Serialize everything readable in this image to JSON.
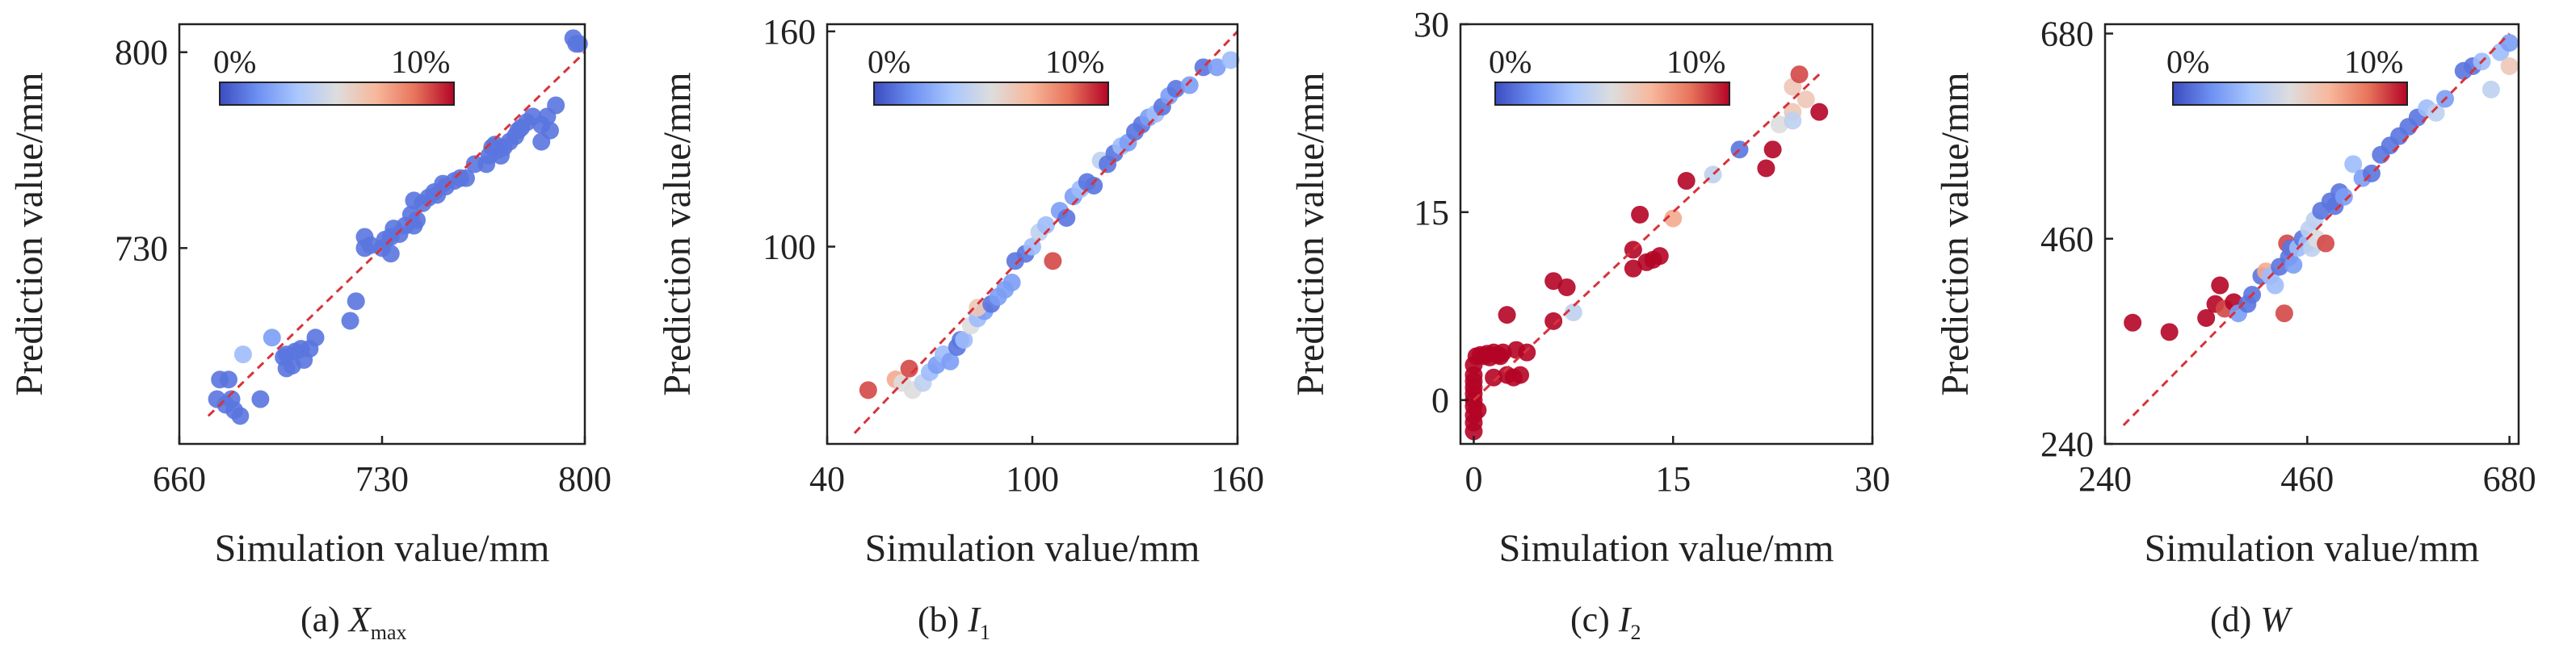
{
  "colorbar": {
    "min_label": "0%",
    "max_label": "10%",
    "colors": [
      "#3b4cc0",
      "#6f92f3",
      "#aac7fd",
      "#dddddd",
      "#f7b89c",
      "#e7745b",
      "#b40426"
    ]
  },
  "chart_data": [
    {
      "type": "scatter",
      "caption_prefix": "(a) ",
      "caption_main": "X",
      "caption_sub": "max",
      "xlabel": "Simulation value/mm",
      "ylabel": "Prediction value/mm",
      "xlim": [
        660,
        800
      ],
      "ylim": [
        660,
        810
      ],
      "xticks": [
        "660",
        "730",
        "800"
      ],
      "yticks": [
        "730",
        "800"
      ],
      "diag": [
        670,
        800
      ],
      "points": [
        [
          673,
          676,
          1
        ],
        [
          674,
          683,
          1
        ],
        [
          677,
          683,
          1
        ],
        [
          678,
          676,
          1
        ],
        [
          676,
          674,
          1
        ],
        [
          681,
          670,
          1
        ],
        [
          679,
          672,
          1
        ],
        [
          682,
          692,
          3
        ],
        [
          688,
          676,
          1
        ],
        [
          692,
          698,
          2
        ],
        [
          697,
          692,
          1
        ],
        [
          696,
          691,
          1
        ],
        [
          699,
          688,
          1
        ],
        [
          697,
          687,
          1
        ],
        [
          700,
          693,
          1
        ],
        [
          703,
          690,
          1
        ],
        [
          702,
          694,
          1
        ],
        [
          705,
          694,
          1
        ],
        [
          707,
          698,
          1
        ],
        [
          719,
          704,
          1
        ],
        [
          721,
          711,
          1
        ],
        [
          724,
          730,
          1
        ],
        [
          724,
          734,
          1
        ],
        [
          726,
          731,
          1
        ],
        [
          730,
          730,
          1
        ],
        [
          731,
          733,
          1
        ],
        [
          733,
          734,
          1
        ],
        [
          733,
          728,
          1
        ],
        [
          734,
          737,
          1
        ],
        [
          736,
          735,
          1
        ],
        [
          738,
          738,
          1
        ],
        [
          740,
          742,
          1
        ],
        [
          741,
          738,
          1
        ],
        [
          742,
          740,
          1
        ],
        [
          741,
          747,
          1
        ],
        [
          744,
          746,
          1
        ],
        [
          746,
          748,
          1
        ],
        [
          748,
          750,
          1
        ],
        [
          749,
          749,
          1
        ],
        [
          751,
          753,
          1
        ],
        [
          752,
          752,
          1
        ],
        [
          755,
          754,
          1
        ],
        [
          757,
          755,
          1
        ],
        [
          759,
          755,
          1
        ],
        [
          762,
          760,
          1
        ],
        [
          766,
          760,
          1
        ],
        [
          767,
          763,
          1
        ],
        [
          768,
          766,
          1
        ],
        [
          769,
          767,
          1
        ],
        [
          770,
          765,
          1
        ],
        [
          771,
          763,
          1
        ],
        [
          772,
          766,
          1
        ],
        [
          774,
          768,
          1
        ],
        [
          776,
          770,
          1
        ],
        [
          777,
          772,
          1
        ],
        [
          778,
          773,
          1
        ],
        [
          780,
          775,
          1
        ],
        [
          782,
          777,
          1
        ],
        [
          785,
          774,
          1
        ],
        [
          787,
          777,
          1
        ],
        [
          790,
          781,
          1
        ],
        [
          785,
          768,
          1
        ],
        [
          788,
          772,
          1
        ],
        [
          796,
          805,
          1
        ],
        [
          797,
          803,
          1
        ],
        [
          798,
          803,
          1
        ]
      ]
    },
    {
      "type": "scatter",
      "caption_prefix": "(b) ",
      "caption_main": "I",
      "caption_sub": "1",
      "xlabel": "Simulation value/mm",
      "ylabel": "Prediction value/mm",
      "xlim": [
        40,
        160
      ],
      "ylim": [
        45,
        162
      ],
      "xticks": [
        "40",
        "100",
        "160"
      ],
      "yticks": [
        "100",
        "160"
      ],
      "diag": [
        48,
        160
      ],
      "points": [
        [
          52,
          60,
          9
        ],
        [
          60,
          63,
          7
        ],
        [
          62,
          62,
          5
        ],
        [
          64,
          66,
          9
        ],
        [
          65,
          60,
          5
        ],
        [
          68,
          62,
          4
        ],
        [
          70,
          65,
          3
        ],
        [
          72,
          67,
          2
        ],
        [
          74,
          70,
          3
        ],
        [
          76,
          68,
          2
        ],
        [
          78,
          72,
          1
        ],
        [
          79,
          74,
          1
        ],
        [
          80,
          74,
          3
        ],
        [
          82,
          78,
          5
        ],
        [
          84,
          80,
          3
        ],
        [
          86,
          82,
          2
        ],
        [
          84,
          83,
          6
        ],
        [
          88,
          84,
          1
        ],
        [
          90,
          86,
          2
        ],
        [
          92,
          88,
          2
        ],
        [
          94,
          90,
          2
        ],
        [
          95,
          96,
          1
        ],
        [
          98,
          98,
          1
        ],
        [
          100,
          100,
          3
        ],
        [
          102,
          104,
          4
        ],
        [
          104,
          106,
          3
        ],
        [
          106,
          96,
          9
        ],
        [
          108,
          110,
          2
        ],
        [
          110,
          108,
          1
        ],
        [
          112,
          114,
          2
        ],
        [
          114,
          116,
          3
        ],
        [
          116,
          118,
          1
        ],
        [
          118,
          117,
          1
        ],
        [
          120,
          124,
          4
        ],
        [
          122,
          123,
          1
        ],
        [
          124,
          126,
          1
        ],
        [
          126,
          128,
          3
        ],
        [
          128,
          129,
          2
        ],
        [
          130,
          132,
          1
        ],
        [
          132,
          134,
          1
        ],
        [
          134,
          136,
          2
        ],
        [
          136,
          137,
          3
        ],
        [
          138,
          139,
          1
        ],
        [
          140,
          142,
          2
        ],
        [
          142,
          144,
          1
        ],
        [
          146,
          145,
          2
        ],
        [
          150,
          150,
          1
        ],
        [
          154,
          150,
          2
        ],
        [
          158,
          152,
          3
        ]
      ]
    },
    {
      "type": "scatter",
      "caption_prefix": "(c) ",
      "caption_main": "I",
      "caption_sub": "2",
      "xlabel": "Simulation value/mm",
      "ylabel": "Prediction value/mm",
      "xlim": [
        -1,
        30
      ],
      "ylim": [
        -3.5,
        30
      ],
      "xticks": [
        "0",
        "15",
        "30"
      ],
      "yticks": [
        "0",
        "15",
        "30"
      ],
      "diag": [
        0,
        26
      ],
      "points": [
        [
          0,
          -2.5,
          10
        ],
        [
          0,
          -1.8,
          10
        ],
        [
          0,
          -1.2,
          10
        ],
        [
          0,
          -0.5,
          10
        ],
        [
          0,
          0,
          10
        ],
        [
          0,
          0.5,
          10
        ],
        [
          0,
          1,
          10
        ],
        [
          0,
          1.5,
          10
        ],
        [
          0,
          2,
          10
        ],
        [
          0,
          2.8,
          10
        ],
        [
          0.2,
          3.5,
          10
        ],
        [
          0.3,
          -0.8,
          10
        ],
        [
          0.5,
          3.6,
          10
        ],
        [
          0.8,
          3.5,
          10
        ],
        [
          1,
          3.7,
          10
        ],
        [
          1.2,
          3.4,
          10
        ],
        [
          1.5,
          3.8,
          10
        ],
        [
          1.8,
          3.6,
          10
        ],
        [
          2,
          3.5,
          10
        ],
        [
          2.2,
          3.8,
          10
        ],
        [
          1.5,
          1.8,
          10
        ],
        [
          2.5,
          2,
          10
        ],
        [
          2.5,
          6.8,
          10
        ],
        [
          3,
          1.8,
          10
        ],
        [
          3.5,
          2,
          10
        ],
        [
          3.2,
          4,
          10
        ],
        [
          4,
          3.8,
          10
        ],
        [
          6,
          6.3,
          10
        ],
        [
          6,
          9.5,
          10
        ],
        [
          7,
          9,
          10
        ],
        [
          7.5,
          7,
          4
        ],
        [
          12,
          10.5,
          10
        ],
        [
          12,
          12,
          10
        ],
        [
          12.5,
          14.8,
          10
        ],
        [
          13,
          11,
          10
        ],
        [
          13.5,
          11.2,
          10
        ],
        [
          14,
          11.5,
          10
        ],
        [
          15,
          14.5,
          7
        ],
        [
          16,
          17.5,
          10
        ],
        [
          18,
          18,
          4
        ],
        [
          20,
          20,
          1
        ],
        [
          22,
          18.5,
          10
        ],
        [
          22.5,
          20,
          10
        ],
        [
          23,
          22,
          5
        ],
        [
          24,
          23,
          6
        ],
        [
          24,
          25,
          6
        ],
        [
          24,
          22.3,
          4
        ],
        [
          24.5,
          26,
          9
        ],
        [
          25,
          24,
          6
        ],
        [
          26,
          23,
          10
        ]
      ]
    },
    {
      "type": "scatter",
      "caption_prefix": "(d) ",
      "caption_main": "W",
      "caption_sub": "",
      "xlabel": "Simulation value/mm",
      "ylabel": "Prediction value/mm",
      "xlim": [
        240,
        690
      ],
      "ylim": [
        240,
        690
      ],
      "xticks": [
        "240",
        "460",
        "680"
      ],
      "yticks": [
        "240",
        "460",
        "680"
      ],
      "diag": [
        260,
        680
      ],
      "points": [
        [
          270,
          370,
          10
        ],
        [
          310,
          360,
          10
        ],
        [
          350,
          375,
          10
        ],
        [
          360,
          390,
          10
        ],
        [
          365,
          410,
          10
        ],
        [
          370,
          385,
          9
        ],
        [
          380,
          392,
          10
        ],
        [
          385,
          380,
          2
        ],
        [
          395,
          390,
          1
        ],
        [
          400,
          400,
          1
        ],
        [
          410,
          420,
          1
        ],
        [
          415,
          425,
          7
        ],
        [
          420,
          420,
          3
        ],
        [
          425,
          410,
          3
        ],
        [
          430,
          430,
          1
        ],
        [
          435,
          380,
          9
        ],
        [
          438,
          455,
          9
        ],
        [
          440,
          440,
          1
        ],
        [
          442,
          450,
          1
        ],
        [
          445,
          432,
          2
        ],
        [
          450,
          450,
          3
        ],
        [
          455,
          460,
          1
        ],
        [
          460,
          455,
          3
        ],
        [
          462,
          470,
          4
        ],
        [
          465,
          450,
          4
        ],
        [
          468,
          480,
          4
        ],
        [
          470,
          460,
          5
        ],
        [
          475,
          490,
          1
        ],
        [
          480,
          455,
          9
        ],
        [
          485,
          500,
          1
        ],
        [
          490,
          495,
          1
        ],
        [
          495,
          510,
          1
        ],
        [
          500,
          505,
          2
        ],
        [
          510,
          540,
          3
        ],
        [
          520,
          525,
          2
        ],
        [
          530,
          530,
          1
        ],
        [
          540,
          550,
          1
        ],
        [
          550,
          560,
          1
        ],
        [
          560,
          570,
          1
        ],
        [
          570,
          580,
          1
        ],
        [
          580,
          590,
          1
        ],
        [
          590,
          600,
          3
        ],
        [
          600,
          595,
          4
        ],
        [
          610,
          610,
          2
        ],
        [
          630,
          640,
          1
        ],
        [
          640,
          645,
          1
        ],
        [
          650,
          650,
          3
        ],
        [
          660,
          620,
          4
        ],
        [
          670,
          660,
          3
        ],
        [
          680,
          670,
          2
        ],
        [
          680,
          645,
          6
        ]
      ]
    }
  ]
}
